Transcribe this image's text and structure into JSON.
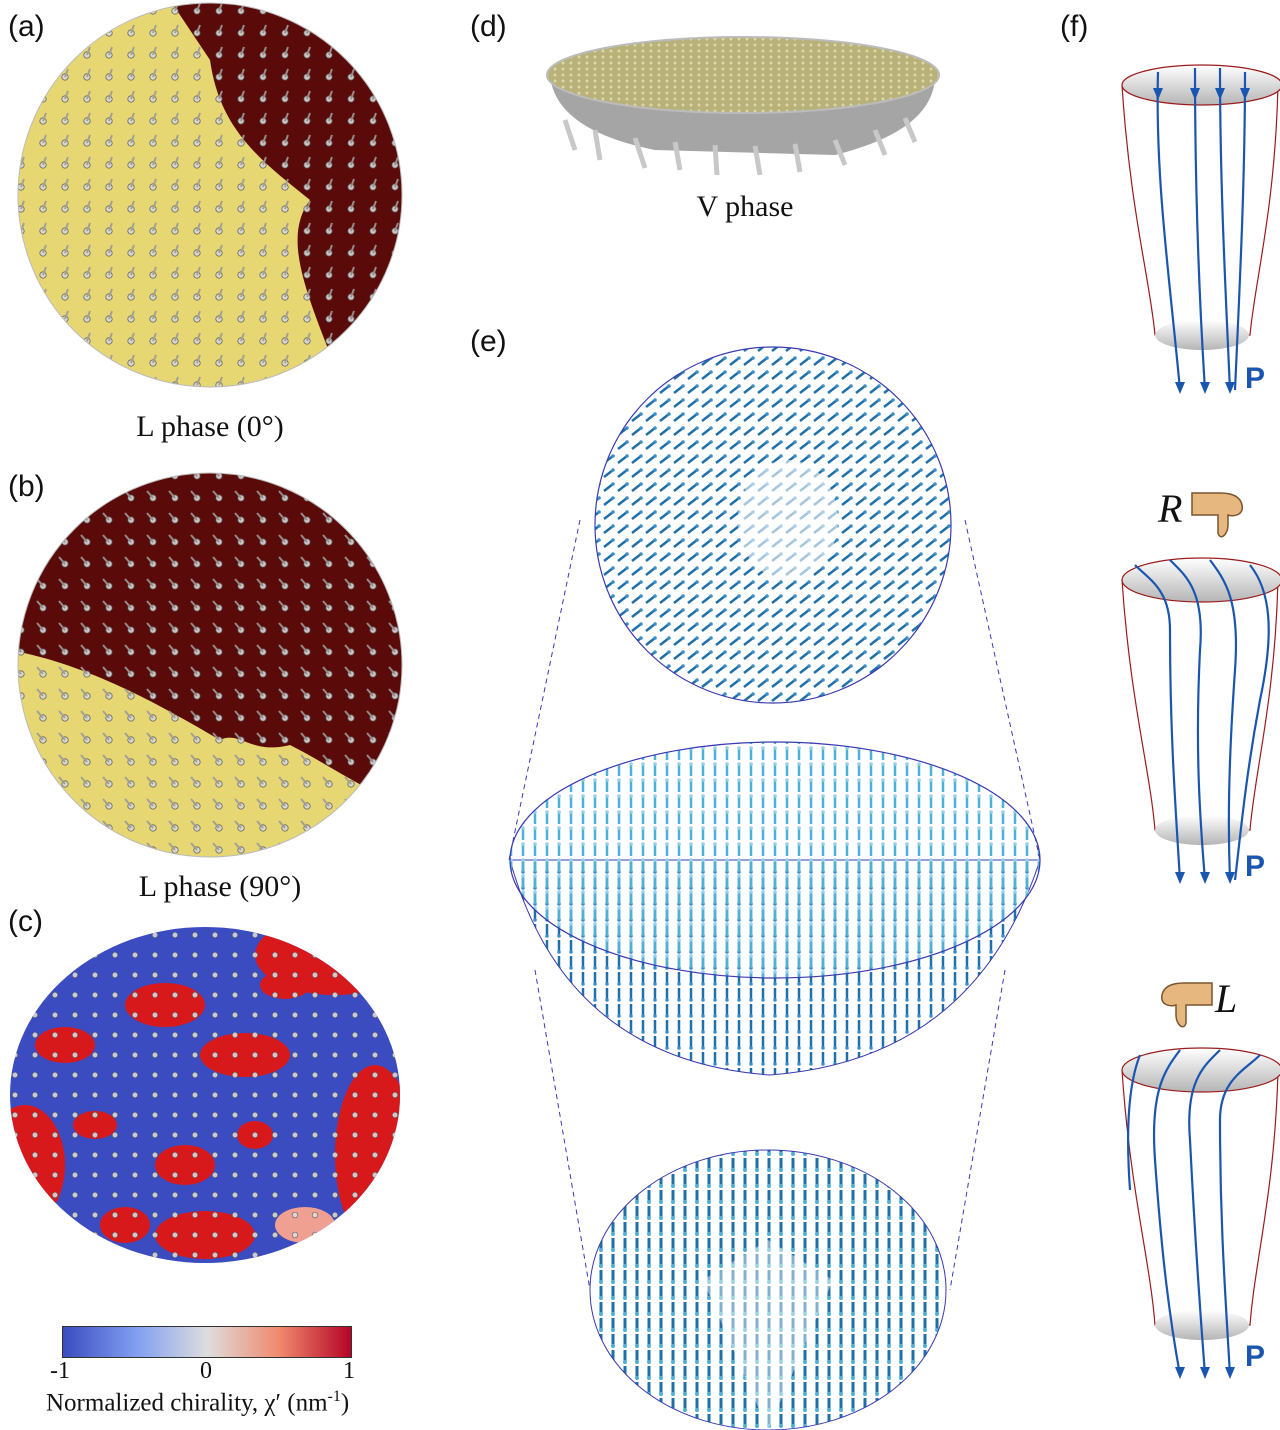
{
  "panels": {
    "a": {
      "label": "(a)",
      "caption": "L phase (0°)"
    },
    "b": {
      "label": "(b)",
      "caption": "L phase (90°)"
    },
    "c": {
      "label": "(c)"
    },
    "d": {
      "label": "(d)",
      "caption": "V phase"
    },
    "e": {
      "label": "(e)"
    },
    "f": {
      "label": "(f)"
    }
  },
  "colorbar": {
    "ticks": [
      "-1",
      "0",
      "1"
    ],
    "title_main": "Normalized chirality, χ′ (nm",
    "title_sup": "-1",
    "title_end": ")"
  },
  "handedness": {
    "right": "R",
    "left": "L"
  },
  "polarization_label": "P",
  "colors": {
    "yellow_domain": "#e6d772",
    "red_domain": "#5a0a08",
    "chirality_blue": "#3b4cc0",
    "chirality_red": "#d7191c",
    "arrow_blue": "#1f6fa8",
    "field_line": "#1a56b0",
    "shell_outline": "#9b1b1b",
    "p_color": "#1a56b0"
  },
  "icons": [
    "thumb-down-icon",
    "arrow-glyph-icon"
  ]
}
